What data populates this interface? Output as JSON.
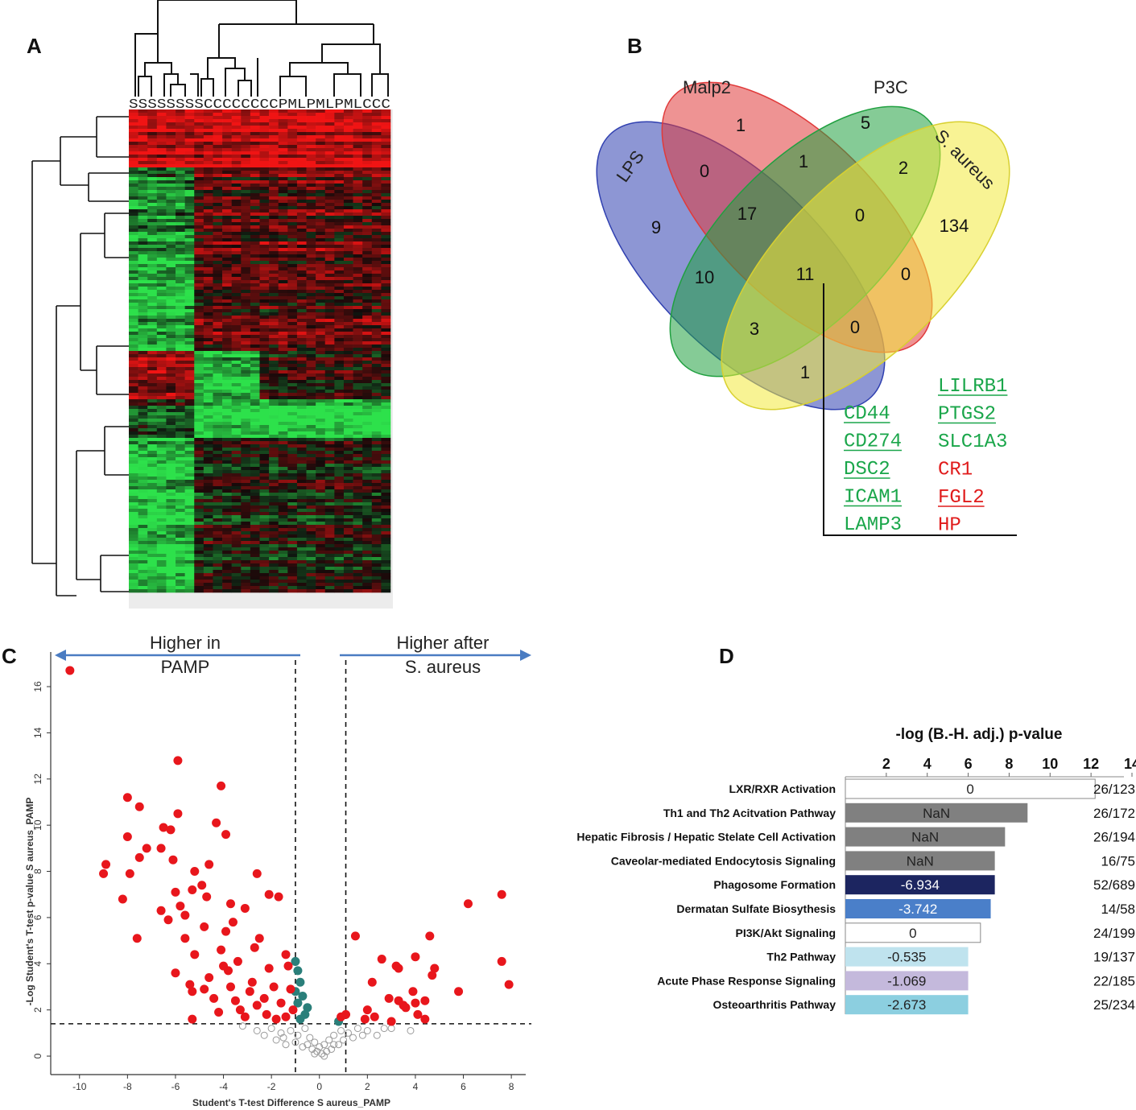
{
  "panels": {
    "a": "A",
    "b": "B",
    "c": "C",
    "d": "D"
  },
  "colors": {
    "heat_red": "#e31a1c",
    "heat_green": "#2ecc40",
    "heat_black": "#111111",
    "venn_lps": "#3040b0",
    "venn_malp2": "#e03a3a",
    "venn_p3c": "#20a040",
    "venn_saureus": "#f2ea3c",
    "gene_green": "#1aa64a",
    "gene_red": "#e01b1b",
    "volcano_red": "#e8161c",
    "volcano_teal": "#2a7f7a",
    "volcano_grey": "#9a9a9a",
    "arrow_blue": "#4a7cc2"
  },
  "heatmap": {
    "column_labels": "SSSSSSSSCCCCCCCCPMLPMLPMLCCC"
  },
  "venn": {
    "sets": [
      "LPS",
      "Malp2",
      "P3C",
      "S. aureus"
    ],
    "regions": {
      "lps_only": "9",
      "malp2_only": "1",
      "p3c_only": "5",
      "saureus_only": "134",
      "lps_malp2": "0",
      "malp2_p3c": "1",
      "p3c_saureus": "2",
      "lps_malp2_p3c": "17",
      "malp2_p3c_saureus": "0",
      "all": "11",
      "lps_p3c": "10",
      "malp2_saureus": "0",
      "lps_p3c_saureus": "3",
      "lps_malp2_saureus": "0",
      "lps_saureus": "1"
    },
    "genes_left": [
      {
        "name": "CD44",
        "color": "green",
        "underline": true
      },
      {
        "name": "CD274",
        "color": "green",
        "underline": true
      },
      {
        "name": "DSC2",
        "color": "green",
        "underline": true
      },
      {
        "name": "ICAM1",
        "color": "green",
        "underline": true
      },
      {
        "name": "LAMP3",
        "color": "green",
        "underline": false
      }
    ],
    "genes_right": [
      {
        "name": "LILRB1",
        "color": "green",
        "underline": true
      },
      {
        "name": "PTGS2",
        "color": "green",
        "underline": true
      },
      {
        "name": "SLC1A3",
        "color": "green",
        "underline": false
      },
      {
        "name": "CR1",
        "color": "red",
        "underline": false
      },
      {
        "name": "FGL2",
        "color": "red",
        "underline": true
      },
      {
        "name": "HP",
        "color": "red",
        "underline": false
      }
    ]
  },
  "volcano": {
    "arrow_left": [
      "Higher in",
      "PAMP"
    ],
    "arrow_right": [
      "Higher after",
      "S. aureus"
    ]
  },
  "chart_data": [
    {
      "type": "scatter",
      "title": "",
      "xlabel": "Student's T-test Difference S aureus_PAMP",
      "ylabel": "-Log Student's T-test p-value S aureus_PAMP",
      "xlim": [
        -11.2,
        8.6
      ],
      "ylim": [
        -0.8,
        17.5
      ],
      "xticks": [
        -10,
        -8,
        -6,
        -4,
        -2,
        0,
        2,
        4,
        6,
        8
      ],
      "yticks": [
        0,
        2,
        4,
        6,
        8,
        10,
        12,
        14,
        16
      ],
      "threshold_y": 1.4,
      "threshold_x": [
        -1,
        1.1
      ],
      "series": [
        {
          "name": "significant",
          "color": "red",
          "points": [
            [
              -10.4,
              16.7
            ],
            [
              -5.9,
              12.8
            ],
            [
              -4.1,
              11.7
            ],
            [
              -8.0,
              11.2
            ],
            [
              -7.5,
              10.8
            ],
            [
              -5.9,
              10.5
            ],
            [
              -4.3,
              10.1
            ],
            [
              -8.0,
              9.5
            ],
            [
              -6.5,
              9.9
            ],
            [
              -6.2,
              9.8
            ],
            [
              -3.9,
              9.6
            ],
            [
              -7.2,
              9.0
            ],
            [
              -7.5,
              8.6
            ],
            [
              -6.1,
              8.5
            ],
            [
              -8.9,
              8.3
            ],
            [
              -9.0,
              7.9
            ],
            [
              -7.9,
              7.9
            ],
            [
              -5.2,
              8.0
            ],
            [
              -6.6,
              9.0
            ],
            [
              -4.6,
              8.3
            ],
            [
              -2.6,
              7.9
            ],
            [
              -8.2,
              6.8
            ],
            [
              -6.0,
              7.1
            ],
            [
              -5.3,
              7.2
            ],
            [
              -4.9,
              7.4
            ],
            [
              -2.1,
              7.0
            ],
            [
              -7.6,
              5.1
            ],
            [
              -6.6,
              6.3
            ],
            [
              -5.8,
              6.5
            ],
            [
              -3.7,
              6.6
            ],
            [
              -3.1,
              6.4
            ],
            [
              -1.7,
              6.9
            ],
            [
              -6.3,
              5.9
            ],
            [
              -5.6,
              5.1
            ],
            [
              -4.8,
              5.6
            ],
            [
              -3.9,
              5.4
            ],
            [
              -2.5,
              5.1
            ],
            [
              -5.2,
              4.4
            ],
            [
              -4.1,
              4.6
            ],
            [
              -3.4,
              4.1
            ],
            [
              -2.1,
              3.8
            ],
            [
              -1.4,
              4.4
            ],
            [
              -1.3,
              3.9
            ],
            [
              -6.0,
              3.6
            ],
            [
              -5.4,
              3.1
            ],
            [
              -4.6,
              3.4
            ],
            [
              -3.7,
              3.0
            ],
            [
              -2.8,
              3.2
            ],
            [
              -1.9,
              3.0
            ],
            [
              -1.2,
              2.9
            ],
            [
              -5.3,
              2.8
            ],
            [
              -4.4,
              2.5
            ],
            [
              -3.5,
              2.4
            ],
            [
              -2.6,
              2.2
            ],
            [
              -1.6,
              2.3
            ],
            [
              -1.1,
              2.0
            ],
            [
              -5.3,
              1.6
            ],
            [
              -4.2,
              1.9
            ],
            [
              -3.1,
              1.7
            ],
            [
              -2.2,
              1.8
            ],
            [
              -1.4,
              1.7
            ],
            [
              -3.8,
              3.7
            ],
            [
              -2.9,
              2.8
            ],
            [
              -2.3,
              2.5
            ],
            [
              -3.3,
              2.0
            ],
            [
              -1.8,
              1.6
            ],
            [
              -4.8,
              2.9
            ],
            [
              -4.0,
              3.9
            ],
            [
              -2.7,
              4.7
            ],
            [
              -3.6,
              5.8
            ],
            [
              -4.7,
              6.9
            ],
            [
              -5.6,
              6.1
            ],
            [
              1.5,
              5.2
            ],
            [
              0.9,
              1.7
            ],
            [
              1.9,
              1.6
            ],
            [
              2.0,
              2.0
            ],
            [
              2.3,
              1.7
            ],
            [
              2.6,
              4.2
            ],
            [
              2.9,
              2.5
            ],
            [
              3.0,
              1.5
            ],
            [
              3.2,
              3.9
            ],
            [
              3.3,
              3.8
            ],
            [
              3.3,
              2.4
            ],
            [
              3.5,
              2.2
            ],
            [
              3.6,
              2.1
            ],
            [
              3.9,
              2.8
            ],
            [
              4.0,
              2.3
            ],
            [
              4.1,
              1.8
            ],
            [
              4.0,
              4.3
            ],
            [
              4.4,
              2.4
            ],
            [
              4.4,
              1.6
            ],
            [
              4.6,
              5.2
            ],
            [
              4.7,
              3.5
            ],
            [
              4.8,
              3.8
            ],
            [
              5.8,
              2.8
            ],
            [
              6.2,
              6.6
            ],
            [
              7.6,
              7.0
            ],
            [
              7.6,
              4.1
            ],
            [
              7.9,
              3.1
            ],
            [
              2.2,
              3.2
            ],
            [
              1.1,
              1.8
            ]
          ]
        },
        {
          "name": "borderline",
          "color": "teal",
          "points": [
            [
              -1.0,
              4.1
            ],
            [
              -0.9,
              3.7
            ],
            [
              -0.8,
              3.2
            ],
            [
              -1.0,
              2.8
            ],
            [
              -0.7,
              2.6
            ],
            [
              -0.9,
              2.3
            ],
            [
              -0.6,
              1.8
            ],
            [
              -0.8,
              1.6
            ],
            [
              -0.5,
              2.1
            ],
            [
              0.8,
              1.5
            ]
          ]
        },
        {
          "name": "not significant",
          "color": "grey",
          "points": [
            [
              -2.0,
              1.2
            ],
            [
              -1.6,
              1.0
            ],
            [
              -1.2,
              1.1
            ],
            [
              -0.9,
              0.9
            ],
            [
              -0.6,
              1.2
            ],
            [
              -0.4,
              0.8
            ],
            [
              -0.2,
              0.6
            ],
            [
              0.0,
              0.4
            ],
            [
              0.2,
              0.5
            ],
            [
              0.4,
              0.7
            ],
            [
              0.6,
              0.9
            ],
            [
              0.9,
              1.1
            ],
            [
              1.2,
              1.0
            ],
            [
              1.6,
              1.2
            ],
            [
              2.0,
              1.1
            ],
            [
              2.4,
              0.9
            ],
            [
              3.0,
              1.2
            ],
            [
              3.8,
              1.1
            ],
            [
              -3.2,
              1.3
            ],
            [
              -2.6,
              1.1
            ],
            [
              -1.8,
              0.7
            ],
            [
              -1.4,
              0.5
            ],
            [
              -1.0,
              0.6
            ],
            [
              -0.7,
              0.4
            ],
            [
              -0.3,
              0.3
            ],
            [
              0.1,
              0.1
            ],
            [
              0.3,
              0.2
            ],
            [
              0.5,
              0.3
            ],
            [
              0.8,
              0.5
            ],
            [
              1.0,
              0.7
            ],
            [
              1.4,
              0.8
            ],
            [
              -0.5,
              0.5
            ],
            [
              -1.5,
              0.8
            ],
            [
              -2.3,
              0.9
            ],
            [
              -0.1,
              0.2
            ],
            [
              0.2,
              0.0
            ],
            [
              -0.2,
              0.1
            ],
            [
              0.6,
              0.5
            ],
            [
              1.8,
              0.9
            ],
            [
              2.7,
              1.2
            ]
          ]
        }
      ]
    },
    {
      "type": "bar",
      "orientation": "horizontal",
      "title": "-log (B.-H. adj.) p-value",
      "xticks": [
        2,
        4,
        6,
        8,
        10,
        12,
        14
      ],
      "xlim": [
        0,
        14
      ],
      "categories": [
        "LXR/RXR Activation",
        "Th1 and Th2 Acitvation Pathway",
        "Hepatic Fibrosis / Hepatic Stelate Cell Activation",
        "Caveolar-mediated Endocytosis Signaling",
        "Phagosome Formation",
        "Dermatan Sulfate Biosythesis",
        "PI3K/Akt Signaling",
        "Th2 Pathway",
        "Acute Phase Response Signaling",
        "Osteoarthritis Pathway"
      ],
      "values": [
        12.2,
        8.9,
        7.8,
        7.3,
        7.3,
        7.1,
        6.6,
        6.0,
        6.0,
        6.0
      ],
      "bar_labels": [
        "0",
        "NaN",
        "NaN",
        "NaN",
        "-6.934",
        "-3.742",
        "0",
        "-0.535",
        "-1.069",
        "-2.673"
      ],
      "ratios": [
        "26/123",
        "26/172",
        "26/194",
        "16/75",
        "52/689",
        "14/58",
        "24/199",
        "19/137",
        "22/185",
        "25/234"
      ],
      "bar_colors": [
        "#ffffff",
        "#808080",
        "#808080",
        "#808080",
        "#1c2560",
        "#4a7fc9",
        "#ffffff",
        "#bfe3ee",
        "#c4b9dc",
        "#8ccfe0"
      ]
    }
  ]
}
